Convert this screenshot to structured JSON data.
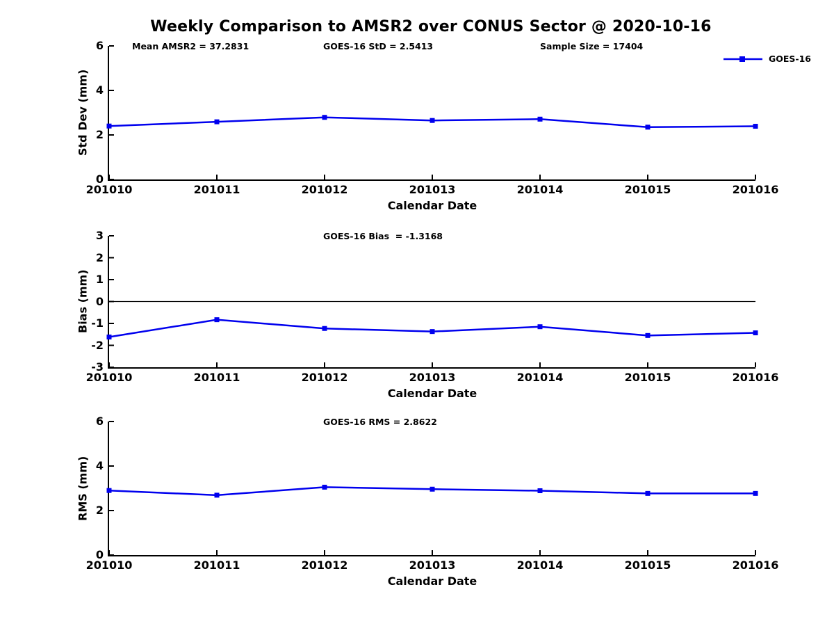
{
  "figure": {
    "title": "Weekly Comparison to AMSR2 over CONUS Sector @ 2020-10-16",
    "background": "#ffffff",
    "colors": {
      "line": "#0000ee",
      "text": "#000000",
      "axis": "#000000",
      "zero_line": "#000000"
    },
    "legend": {
      "label": "GOES-16",
      "position": "top-right-outside"
    }
  },
  "chart_data": [
    {
      "type": "line",
      "name": "std-dev-vs-week",
      "annotations": [
        "Mean AMSR2 = 37.2831",
        "GOES-16 StD = 2.5413",
        "Sample Size = 17404"
      ],
      "categories": [
        "201010",
        "201011",
        "201012",
        "201013",
        "201014",
        "201015",
        "201016"
      ],
      "series": [
        {
          "name": "GOES-16",
          "values": [
            2.4,
            2.59,
            2.79,
            2.65,
            2.71,
            2.35,
            2.39
          ]
        }
      ],
      "xlabel": "Calendar Date",
      "ylabel": "Std Dev (mm)",
      "ylim": [
        0,
        6
      ],
      "yticks": [
        0,
        2,
        4,
        6
      ],
      "zero_line": false,
      "grid": false,
      "marker": "square",
      "legend_visible": true
    },
    {
      "type": "line",
      "name": "bias-vs-week",
      "annotations": [
        "GOES-16 Bias  = -1.3168"
      ],
      "categories": [
        "201010",
        "201011",
        "201012",
        "201013",
        "201014",
        "201015",
        "201016"
      ],
      "series": [
        {
          "name": "GOES-16",
          "values": [
            -1.62,
            -0.83,
            -1.23,
            -1.37,
            -1.15,
            -1.55,
            -1.43
          ]
        }
      ],
      "xlabel": "Calendar Date",
      "ylabel": "Bias (mm)",
      "ylim": [
        -3,
        3
      ],
      "yticks": [
        -3,
        -2,
        -1,
        0,
        1,
        2,
        3
      ],
      "zero_line": true,
      "grid": false,
      "marker": "square",
      "legend_visible": false
    },
    {
      "type": "line",
      "name": "rms-vs-week",
      "annotations": [
        "GOES-16 RMS = 2.8622"
      ],
      "categories": [
        "201010",
        "201011",
        "201012",
        "201013",
        "201014",
        "201015",
        "201016"
      ],
      "series": [
        {
          "name": "GOES-16",
          "values": [
            2.9,
            2.69,
            3.05,
            2.96,
            2.89,
            2.77,
            2.77
          ]
        }
      ],
      "xlabel": "Calendar Date",
      "ylabel": "RMS (mm)",
      "ylim": [
        0,
        6
      ],
      "yticks": [
        0,
        2,
        4,
        6
      ],
      "zero_line": false,
      "grid": false,
      "marker": "square",
      "legend_visible": false
    }
  ]
}
